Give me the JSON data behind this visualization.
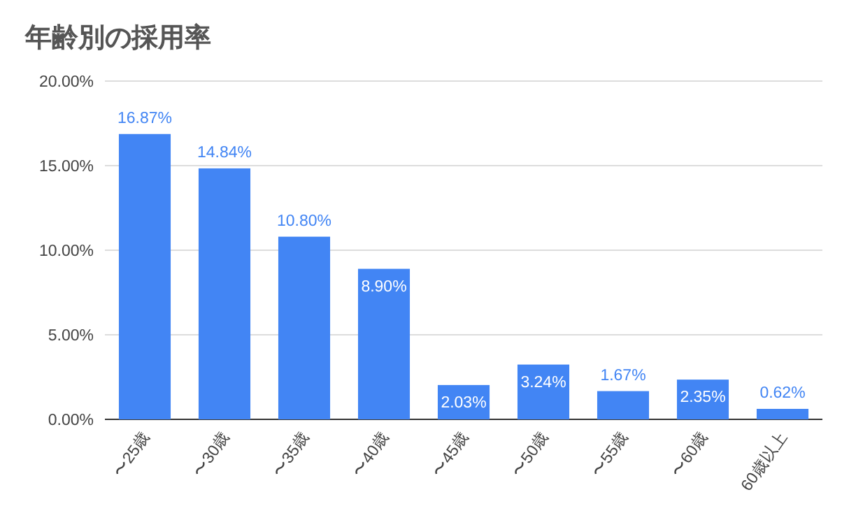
{
  "chart_data": {
    "type": "bar",
    "title": "年齢別の採用率",
    "categories": [
      "〜25歳",
      "〜30歳",
      "〜35歳",
      "〜40歳",
      "〜45歳",
      "〜50歳",
      "〜55歳",
      "〜60歳",
      "60歳以上"
    ],
    "values": [
      16.87,
      14.84,
      10.8,
      8.9,
      2.03,
      3.24,
      1.67,
      2.35,
      0.62
    ],
    "value_labels": [
      "16.87%",
      "14.84%",
      "10.80%",
      "8.90%",
      "2.03%",
      "3.24%",
      "1.67%",
      "2.35%",
      "0.62%"
    ],
    "color": "#4285f4",
    "ylim": [
      0,
      20
    ],
    "yticks": [
      {
        "value": 0,
        "label": "0.00%"
      },
      {
        "value": 5,
        "label": "5.00%"
      },
      {
        "value": 10,
        "label": "10.00%"
      },
      {
        "value": 15,
        "label": "15.00%"
      },
      {
        "value": 20,
        "label": "20.00%"
      }
    ],
    "grid": "y"
  }
}
